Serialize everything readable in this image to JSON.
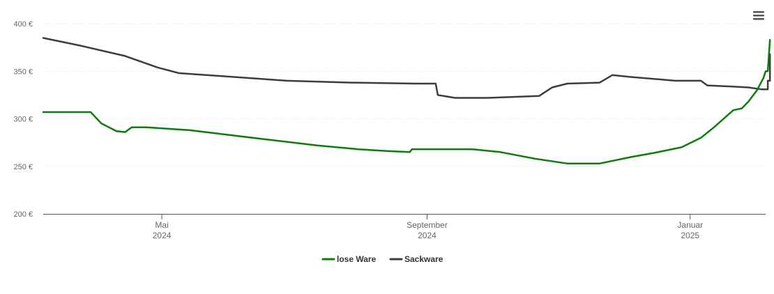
{
  "chart_data": {
    "type": "line",
    "title": "",
    "xlabel": "",
    "ylabel": "",
    "ylim": [
      200,
      400
    ],
    "yticks": [
      200,
      250,
      300,
      350,
      400
    ],
    "ytick_labels": [
      "200 €",
      "250 €",
      "300 €",
      "350 €",
      "400 €"
    ],
    "xlim": [
      "2024-03-07",
      "2025-02-05"
    ],
    "xticks": [
      {
        "date": "2024-05-01",
        "month": "Mai",
        "year": "2024"
      },
      {
        "date": "2024-09-01",
        "month": "September",
        "year": "2024"
      },
      {
        "date": "2025-01-01",
        "month": "Januar",
        "year": "2025"
      }
    ],
    "grid": true,
    "legend": "bottom-center",
    "series": [
      {
        "name": "lose Ware",
        "color": "#0a7d0a",
        "points": [
          [
            "2024-03-07",
            307
          ],
          [
            "2024-03-29",
            307
          ],
          [
            "2024-04-03",
            295
          ],
          [
            "2024-04-10",
            287
          ],
          [
            "2024-04-14",
            286
          ],
          [
            "2024-04-17",
            291
          ],
          [
            "2024-04-24",
            291
          ],
          [
            "2024-05-14",
            288
          ],
          [
            "2024-06-12",
            280
          ],
          [
            "2024-07-12",
            272
          ],
          [
            "2024-07-31",
            268
          ],
          [
            "2024-08-14",
            266
          ],
          [
            "2024-08-24",
            265
          ],
          [
            "2024-08-25",
            268
          ],
          [
            "2024-09-01",
            268
          ],
          [
            "2024-09-14",
            268
          ],
          [
            "2024-09-22",
            268
          ],
          [
            "2024-10-05",
            265
          ],
          [
            "2024-10-21",
            258
          ],
          [
            "2024-11-05",
            253
          ],
          [
            "2024-11-20",
            253
          ],
          [
            "2024-12-05",
            260
          ],
          [
            "2024-12-15",
            264
          ],
          [
            "2024-12-28",
            270
          ],
          [
            "2025-01-06",
            280
          ],
          [
            "2025-01-12",
            291
          ],
          [
            "2025-01-18",
            303
          ],
          [
            "2025-01-21",
            309
          ],
          [
            "2025-01-25",
            311
          ],
          [
            "2025-01-28",
            318
          ],
          [
            "2025-02-01",
            330
          ],
          [
            "2025-02-04",
            343
          ],
          [
            "2025-02-05",
            350
          ],
          [
            "2025-02-06",
            350
          ],
          [
            "2025-02-07",
            383
          ]
        ]
      },
      {
        "name": "Sackware",
        "color": "#3d3d3d",
        "points": [
          [
            "2024-03-07",
            385
          ],
          [
            "2024-03-24",
            377
          ],
          [
            "2024-04-14",
            366
          ],
          [
            "2024-04-29",
            354
          ],
          [
            "2024-05-09",
            348
          ],
          [
            "2024-06-03",
            344
          ],
          [
            "2024-06-28",
            340
          ],
          [
            "2024-07-28",
            338
          ],
          [
            "2024-08-27",
            337
          ],
          [
            "2024-09-05",
            337
          ],
          [
            "2024-09-06",
            325
          ],
          [
            "2024-09-14",
            322
          ],
          [
            "2024-09-29",
            322
          ],
          [
            "2024-10-11",
            323
          ],
          [
            "2024-10-23",
            324
          ],
          [
            "2024-10-29",
            333
          ],
          [
            "2024-11-05",
            337
          ],
          [
            "2024-11-20",
            338
          ],
          [
            "2024-11-26",
            346
          ],
          [
            "2024-12-04",
            344
          ],
          [
            "2024-12-20",
            341
          ],
          [
            "2024-12-25",
            340
          ],
          [
            "2025-01-06",
            340
          ],
          [
            "2025-01-09",
            335
          ],
          [
            "2025-01-20",
            334
          ],
          [
            "2025-01-28",
            333
          ],
          [
            "2025-02-03",
            331
          ],
          [
            "2025-02-06",
            331
          ],
          [
            "2025-02-06",
            340
          ],
          [
            "2025-02-07",
            340
          ],
          [
            "2025-02-07",
            347
          ],
          [
            "2025-02-07",
            368
          ],
          [
            "2025-02-07",
            347
          ]
        ]
      }
    ]
  },
  "toolbar": {
    "menu_icon": "hamburger-menu-icon"
  }
}
